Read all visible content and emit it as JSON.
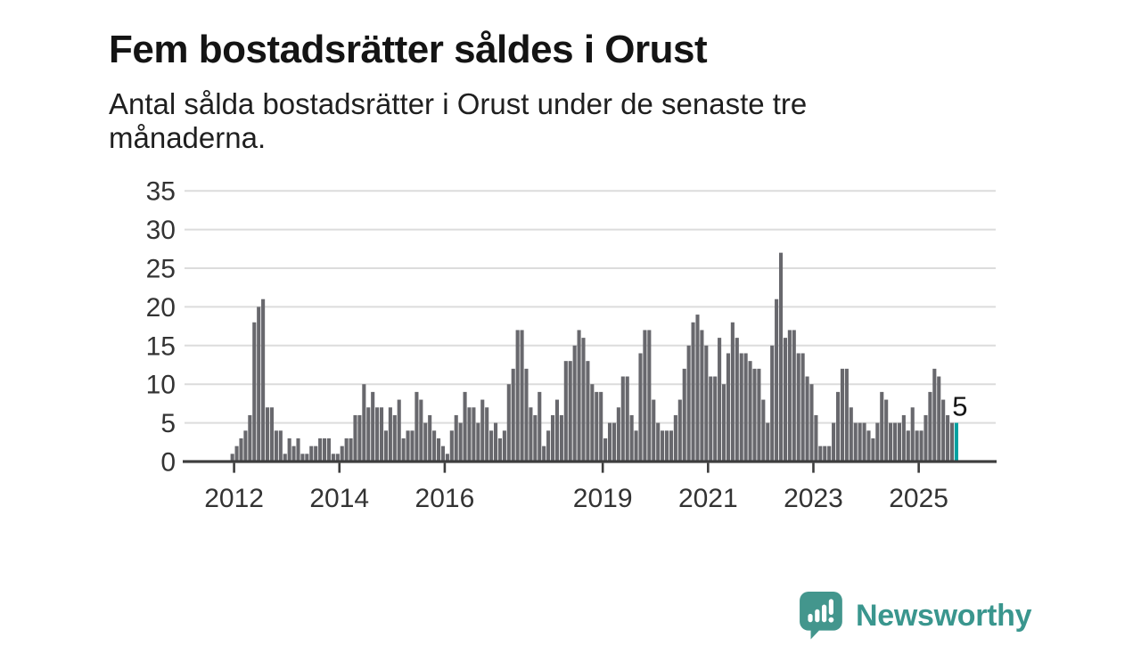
{
  "header": {
    "title": "Fem bostadsrätter såldes i Orust",
    "subtitle_line1": "Antal sålda bostadsrätter i Orust under de senaste tre",
    "subtitle_line2": "månaderna."
  },
  "chart_data": {
    "type": "bar",
    "title": "Fem bostadsrätter såldes i Orust",
    "subtitle": "Antal sålda bostadsrätter i Orust under de senaste tre månaderna.",
    "x_start": "2012-01",
    "x_end": "2025-10",
    "frequency": "monthly",
    "ylim": [
      0,
      35
    ],
    "yticks": [
      0,
      5,
      10,
      15,
      20,
      25,
      30,
      35
    ],
    "xticks": [
      2012,
      2014,
      2016,
      2019,
      2021,
      2023,
      2025
    ],
    "grid": "horizontal",
    "values": [
      1,
      2,
      3,
      4,
      6,
      18,
      20,
      21,
      7,
      7,
      4,
      4,
      1,
      3,
      2,
      3,
      1,
      1,
      2,
      2,
      3,
      3,
      3,
      1,
      1,
      2,
      3,
      3,
      6,
      6,
      10,
      7,
      9,
      7,
      7,
      4,
      7,
      6,
      8,
      3,
      4,
      4,
      9,
      8,
      5,
      6,
      4,
      3,
      2,
      1,
      4,
      6,
      5,
      9,
      7,
      7,
      5,
      8,
      7,
      4,
      5,
      3,
      4,
      10,
      12,
      17,
      17,
      12,
      7,
      6,
      9,
      2,
      4,
      6,
      8,
      6,
      13,
      13,
      15,
      17,
      16,
      13,
      10,
      9,
      9,
      3,
      5,
      5,
      7,
      11,
      11,
      6,
      4,
      14,
      17,
      17,
      8,
      5,
      4,
      4,
      4,
      6,
      8,
      12,
      15,
      18,
      19,
      17,
      15,
      11,
      11,
      16,
      10,
      14,
      18,
      16,
      14,
      14,
      13,
      12,
      12,
      8,
      5,
      15,
      21,
      27,
      16,
      17,
      17,
      14,
      14,
      11,
      10,
      6,
      2,
      2,
      2,
      5,
      9,
      12,
      12,
      7,
      5,
      5,
      5,
      4,
      3,
      5,
      9,
      8,
      5,
      5,
      5,
      6,
      4,
      7,
      4,
      4,
      6,
      9,
      12,
      11,
      8,
      6,
      5,
      5
    ],
    "highlight": {
      "index": 165,
      "value": 5,
      "label": "5"
    },
    "colors": {
      "bar": "#68686d",
      "highlight": "#00a1a1",
      "gridline": "#dcdcdc",
      "axis": "#3d3d3d",
      "tick_label": "#333333",
      "annotation": "#141414"
    }
  },
  "footer": {
    "brand": "Newsworthy",
    "brand_color": "#3a968e"
  }
}
